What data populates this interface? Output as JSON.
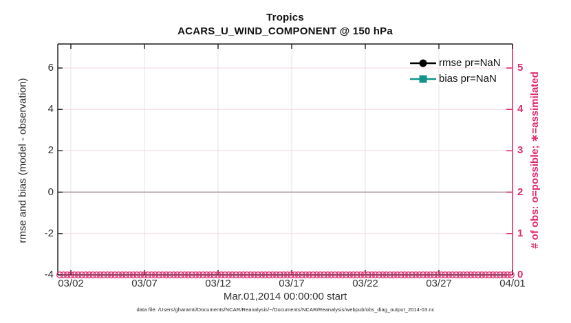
{
  "figure": {
    "title": "Tropics",
    "subtitle": "ACARS_U_WIND_COMPONENT @ 150 hPa",
    "xlabel": "Mar.01,2014 00:00:00 start",
    "ylabel_left": "rmse and bias (model - observation)",
    "ylabel_right": "# of obs: o=possible; ∗=assimilated",
    "caption": "data file: /Users/gharamti/Documents/NCAR/Reanalysis/~/Documents/NCAR/Reanalysis/webpub/obs_diag_output_2014-03.nc"
  },
  "colors": {
    "right_axis_pink": "#e1296e",
    "pink_grid": "#f8d4e2",
    "gray_grid": "#e3e3e3",
    "zero_line": "#b7abaa",
    "axis_black": "#1a1a1a",
    "bias_teal": "#129488",
    "rmse_black": "#000000"
  },
  "legend": [
    {
      "label": "rmse pr=NaN",
      "marker": "circle",
      "color": "#000000"
    },
    {
      "label": "bias pr=NaN",
      "marker": "square",
      "color": "#129488"
    }
  ],
  "chart_data": {
    "type": "line",
    "title": "Tropics",
    "subtitle": "ACARS_U_WIND_COMPONENT @ 150 hPa",
    "xlabel": "Mar.01,2014 00:00:00 start",
    "ylabel_left": "rmse and bias (model - observation)",
    "ylabel_right": "# of obs: o=possible; ∗=assimilated",
    "x_tick_labels": [
      "03/02",
      "03/07",
      "03/12",
      "03/17",
      "03/22",
      "03/27",
      "04/01"
    ],
    "x_range": [
      "2014-03-01",
      "2014-04-01"
    ],
    "yticks_left": [
      -4,
      -2,
      0,
      2,
      4,
      6
    ],
    "ylim_left": [
      -4,
      7
    ],
    "yticks_right": [
      0,
      1,
      2,
      3,
      4,
      5
    ],
    "ylim_right": [
      0,
      5.5
    ],
    "grid": true,
    "legend_position": "upper-right-inside",
    "zero_reference_line_left_axis": 0,
    "series": [
      {
        "name": "rmse pr=NaN",
        "axis": "left",
        "marker": "filled-circle",
        "color": "#000000",
        "values": "NaN — no curve plotted"
      },
      {
        "name": "bias pr=NaN",
        "axis": "left",
        "marker": "filled-square",
        "color": "#129488",
        "values": "NaN — no curve plotted"
      },
      {
        "name": "# of obs possible (o markers)",
        "axis": "right",
        "marker": "open-circle",
        "color": "#e1296e",
        "n_points": 124,
        "value_constant": 0,
        "note": "dense chain of overlapping o markers at count 0 along entire x-range"
      }
    ]
  }
}
